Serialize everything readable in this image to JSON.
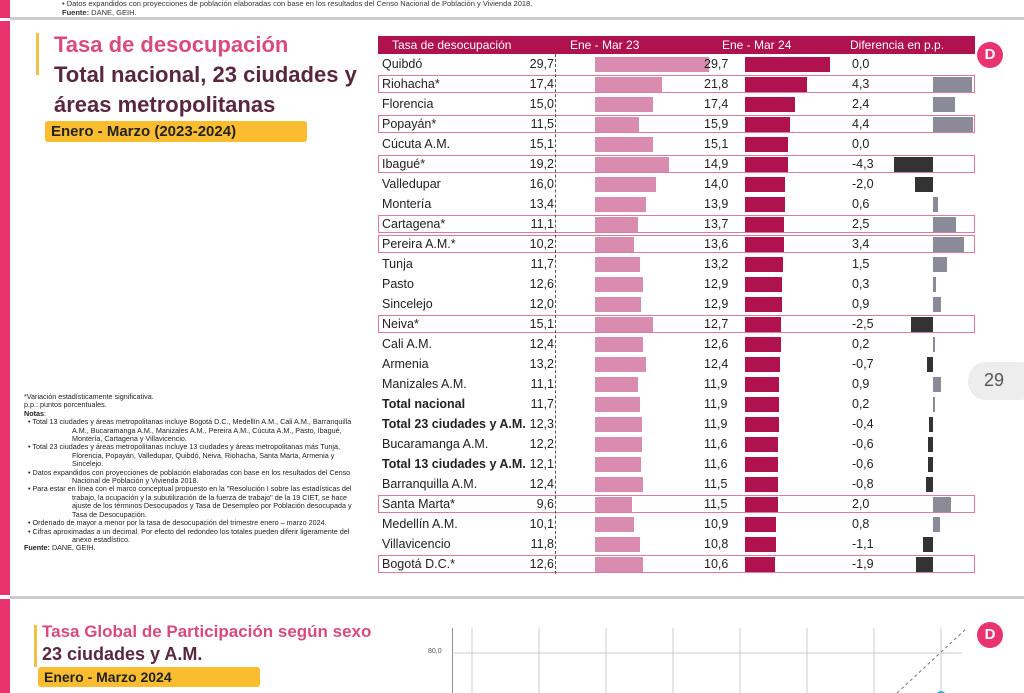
{
  "top": {
    "note": "• Datos expandidos con proyecciones de población elaboradas con base en los resultados del Censo Nacional de Población y Vivienda 2018.",
    "source_label": "Fuente:",
    "source": " DANE, GEIH."
  },
  "section1": {
    "title": "Tasa de desocupación",
    "subtitle_line1": "Total nacional, 23 ciudades y",
    "subtitle_line2": "áreas metropolitanas",
    "period": "Enero - Marzo (2023-2024)"
  },
  "table": {
    "headers": [
      "Tasa de desocupación",
      "Ene - Mar 23",
      "Ene - Mar 24",
      "Diferencia en p.p."
    ],
    "rows": [
      {
        "name": "Quibdó",
        "v23": "29,7",
        "v24": "29,7",
        "diff": "0,0"
      },
      {
        "name": "Riohacha*",
        "v23": "17,4",
        "v24": "21,8",
        "diff": "4,3",
        "hl": true
      },
      {
        "name": "Florencia",
        "v23": "15,0",
        "v24": "17,4",
        "diff": "2,4"
      },
      {
        "name": "Popayán*",
        "v23": "11,5",
        "v24": "15,9",
        "diff": "4,4",
        "hl": true
      },
      {
        "name": "Cúcuta A.M.",
        "v23": "15,1",
        "v24": "15,1",
        "diff": "0,0"
      },
      {
        "name": "Ibagué*",
        "v23": "19,2",
        "v24": "14,9",
        "diff": "-4,3",
        "hl": true
      },
      {
        "name": "Valledupar",
        "v23": "16,0",
        "v24": "14,0",
        "diff": "-2,0"
      },
      {
        "name": "Montería",
        "v23": "13,4",
        "v24": "13,9",
        "diff": "0,6"
      },
      {
        "name": "Cartagena*",
        "v23": "11,1",
        "v24": "13,7",
        "diff": "2,5",
        "hl": true
      },
      {
        "name": "Pereira A.M.*",
        "v23": "10,2",
        "v24": "13,6",
        "diff": "3,4",
        "hl": true
      },
      {
        "name": "Tunja",
        "v23": "11,7",
        "v24": "13,2",
        "diff": "1,5"
      },
      {
        "name": "Pasto",
        "v23": "12,6",
        "v24": "12,9",
        "diff": "0,3"
      },
      {
        "name": "Sincelejo",
        "v23": "12,0",
        "v24": "12,9",
        "diff": "0,9"
      },
      {
        "name": "Neiva*",
        "v23": "15,1",
        "v24": "12,7",
        "diff": "-2,5",
        "hl": true
      },
      {
        "name": "Cali A.M.",
        "v23": "12,4",
        "v24": "12,6",
        "diff": "0,2"
      },
      {
        "name": "Armenia",
        "v23": "13,2",
        "v24": "12,4",
        "diff": "-0,7"
      },
      {
        "name": "Manizales A.M.",
        "v23": "11,1",
        "v24": "11,9",
        "diff": "0,9"
      },
      {
        "name": "Total nacional",
        "v23": "11,7",
        "v24": "11,9",
        "diff": "0,2",
        "bold": true
      },
      {
        "name": "Total 23 ciudades y A.M.",
        "v23": "12,3",
        "v24": "11,9",
        "diff": "-0,4",
        "bold": true
      },
      {
        "name": "Bucaramanga A.M.",
        "v23": "12,2",
        "v24": "11,6",
        "diff": "-0,6"
      },
      {
        "name": "Total 13 ciudades y A.M.",
        "v23": "12,1",
        "v24": "11,6",
        "diff": "-0,6",
        "bold": true
      },
      {
        "name": "Barranquilla A.M.",
        "v23": "12,4",
        "v24": "11,5",
        "diff": "-0,8"
      },
      {
        "name": "Santa Marta*",
        "v23": "9,6",
        "v24": "11,5",
        "diff": "2,0",
        "hl": true
      },
      {
        "name": "Medellín A.M.",
        "v23": "10,1",
        "v24": "10,9",
        "diff": "0,8"
      },
      {
        "name": "Villavicencio",
        "v23": "11,8",
        "v24": "10,8",
        "diff": "-1,1"
      },
      {
        "name": "Bogotá D.C.*",
        "v23": "12,6",
        "v24": "10,6",
        "diff": "-1,9",
        "hl": true
      }
    ],
    "colors": {
      "header": "#b0124f",
      "bar23": "#d98cb0",
      "bar24": "#b0124f",
      "diff_pos": "#8a8a99",
      "diff_neg": "#333333",
      "highlight": "#e07a9a"
    }
  },
  "notes": {
    "l1": "*Variación estadísticamente significativa.",
    "l2": "p.p.: puntos porcentuales.",
    "l3": "Notas",
    "items": [
      "• Total 13 ciudades y áreas metropolitanas incluye Bogotá D.C., Medellín A.M., Cali A.M., Barranquilla A.M., Bucaramanga A.M., Manizales A.M., Pereira A.M., Cúcuta A.M., Pasto, Ibagué, Montería, Cartagena y Villavicencio.",
      "• Total 23 ciudades y áreas metropolitanas incluye 13 ciudades y áreas metropolitanas más Tunja, Florencia, Popayán, Valledupar, Quibdó, Neiva, Riohacha, Santa Marta, Armenia y Sincelejo.",
      "• Datos expandidos con proyecciones de población elaboradas con base en los resultados del Censo Nacional de Población y Vivienda 2018.",
      "• Para estar en línea con el marco conceptual propuesto en la \"Resolución I sobre las estadísticas del trabajo, la ocupación y la subutilización de la fuerza de trabajo\" de la 19 CIET, se hace ajuste de los términos Desocupados y Tasa de Desempleo por Población desocupada y Tasa de Desocupación.",
      "• Ordenado de mayor a menor por la tasa de desocupación del trimestre enero – marzo 2024.",
      "• Cifras aproximadas a un decimal. Por efecto del redondeo los totales pueden diferir ligeramente del anexo estadístico."
    ],
    "source_label": "Fuente:",
    "source": " DANE, GEIH."
  },
  "page_number": "29",
  "section2": {
    "title": "Tasa Global de Participación según sexo",
    "subtitle": "23 ciudades y A.M.",
    "period": "Enero - Marzo 2024",
    "y_tick": "80,0"
  },
  "icons": {
    "logo": "dane-d-logo"
  }
}
